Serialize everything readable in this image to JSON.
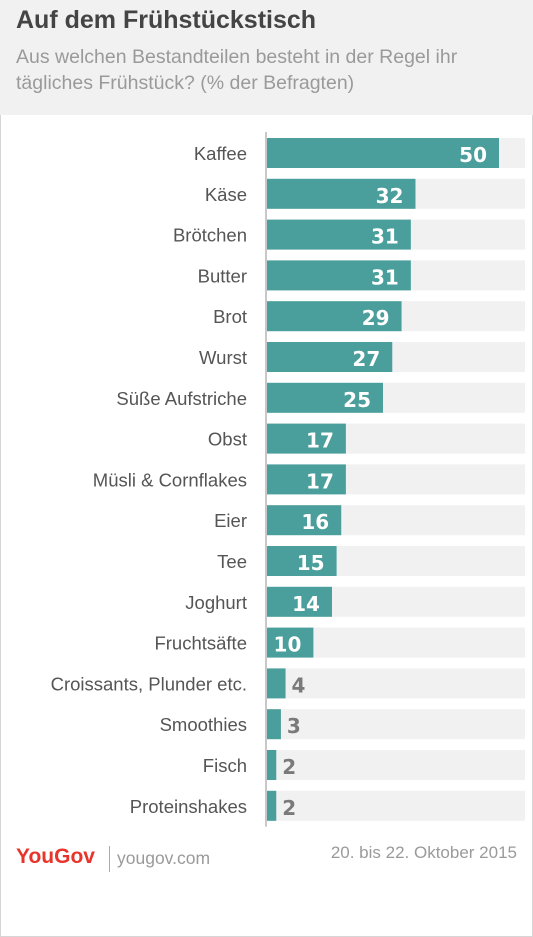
{
  "header": {
    "title": "Auf dem Frühstückstisch",
    "subtitle": "Aus welchen Bestandteilen besteht in der Regel ihr tägliches Frühstück? (% der Befragten)"
  },
  "footer": {
    "brand": "YouGov",
    "url": "yougov.com",
    "date": "20. bis 22. Oktober 2015"
  },
  "colors": {
    "bar": "#4a9e9b",
    "track": "#f1f1f1",
    "label_inside": "#ffffff",
    "label_outside": "#7a7a7a",
    "category_text": "#555555",
    "axis": "#c8c8c8",
    "brand": "#e8352b"
  },
  "chart_data": {
    "type": "bar",
    "orientation": "horizontal",
    "xlim": [
      0,
      55
    ],
    "grid": false,
    "categories": [
      "Kaffee",
      "Käse",
      "Brötchen",
      "Butter",
      "Brot",
      "Wurst",
      "Süße Aufstriche",
      "Obst",
      "Müsli & Cornflakes",
      "Eier",
      "Tee",
      "Joghurt",
      "Fruchtsäfte",
      "Croissants, Plunder etc.",
      "Smoothies",
      "Fisch",
      "Proteinshakes"
    ],
    "values": [
      50,
      32,
      31,
      31,
      29,
      27,
      25,
      17,
      17,
      16,
      15,
      14,
      10,
      4,
      3,
      2,
      2
    ]
  }
}
